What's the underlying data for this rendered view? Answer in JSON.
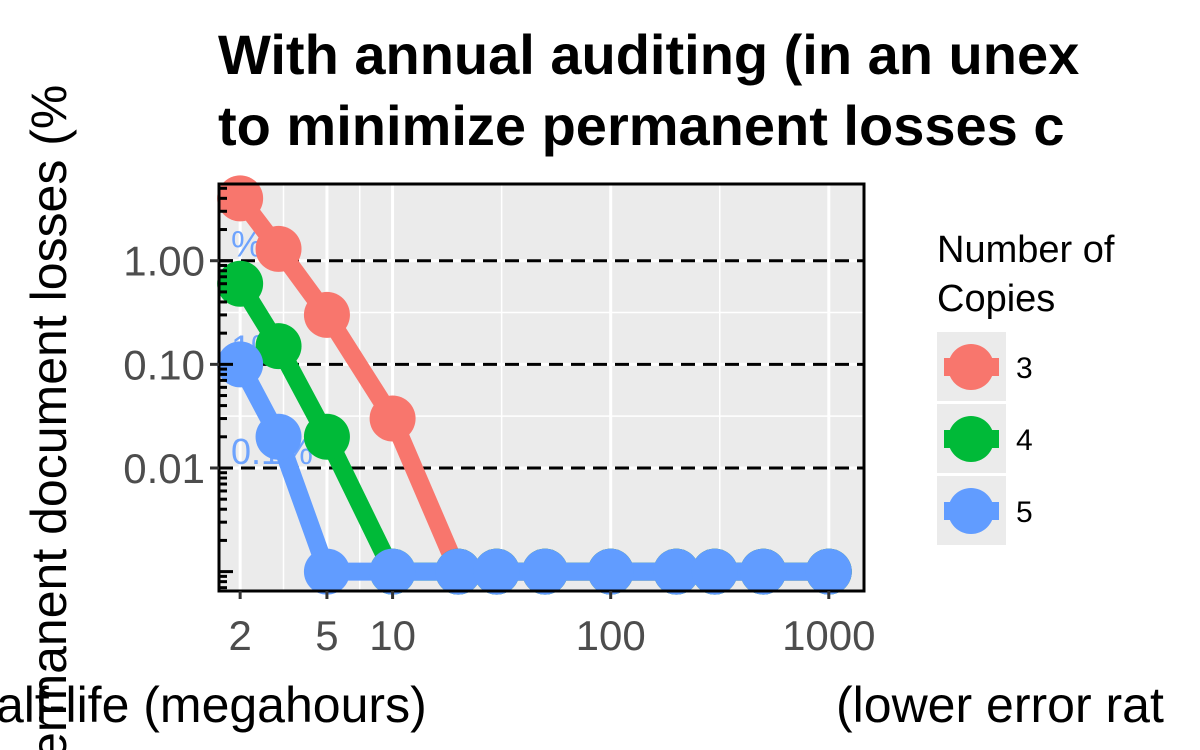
{
  "chart_data": {
    "type": "line",
    "title_lines": [
      "With annual auditing (in an unex",
      "to minimize permanent losses c"
    ],
    "xlabel_left": "alf-life (megahours)",
    "xlabel_right": "(lower error rat",
    "ylabel": "ermanent document losses (%",
    "x_scale": "log",
    "y_scale": "log",
    "xlim": [
      1.6,
      1450
    ],
    "ylim": [
      0.00065,
      5.5
    ],
    "x_ticks": [
      {
        "value": 2,
        "label": "2"
      },
      {
        "value": 5,
        "label": "5"
      },
      {
        "value": 10,
        "label": "10"
      },
      {
        "value": 100,
        "label": "100"
      },
      {
        "value": 1000,
        "label": "1000"
      }
    ],
    "y_ticks": [
      {
        "value": 1,
        "label": "1.00"
      },
      {
        "value": 0.1,
        "label": "0.10"
      },
      {
        "value": 0.01,
        "label": "0.01"
      }
    ],
    "reference_lines": [
      1,
      0.1,
      0.01
    ],
    "reference_labels": [
      "%",
      "1%",
      "0.1%"
    ],
    "grid": true,
    "legend": {
      "title_lines": [
        "Number of",
        "Copies"
      ],
      "position": "right"
    },
    "floor_value": 0.001,
    "series": [
      {
        "name": "3",
        "color": "#f8766d",
        "x": [
          2,
          3,
          5,
          10,
          20,
          30,
          50,
          100,
          200,
          300,
          500,
          1000
        ],
        "y": [
          4,
          1.3,
          0.3,
          0.03,
          0.001,
          0.001,
          0.001,
          0.001,
          0.001,
          0.001,
          0.001,
          0.001
        ]
      },
      {
        "name": "4",
        "color": "#00ba38",
        "x": [
          2,
          3,
          5,
          10,
          20,
          30,
          50,
          100,
          200,
          300,
          500,
          1000
        ],
        "y": [
          0.6,
          0.15,
          0.02,
          0.001,
          0.001,
          0.001,
          0.001,
          0.001,
          0.001,
          0.001,
          0.001,
          0.001
        ]
      },
      {
        "name": "5",
        "color": "#619cff",
        "x": [
          2,
          3,
          5,
          10,
          20,
          30,
          50,
          100,
          200,
          300,
          500,
          1000
        ],
        "y": [
          0.1,
          0.02,
          0.001,
          0.001,
          0.001,
          0.001,
          0.001,
          0.001,
          0.001,
          0.001,
          0.001,
          0.001
        ]
      }
    ]
  }
}
